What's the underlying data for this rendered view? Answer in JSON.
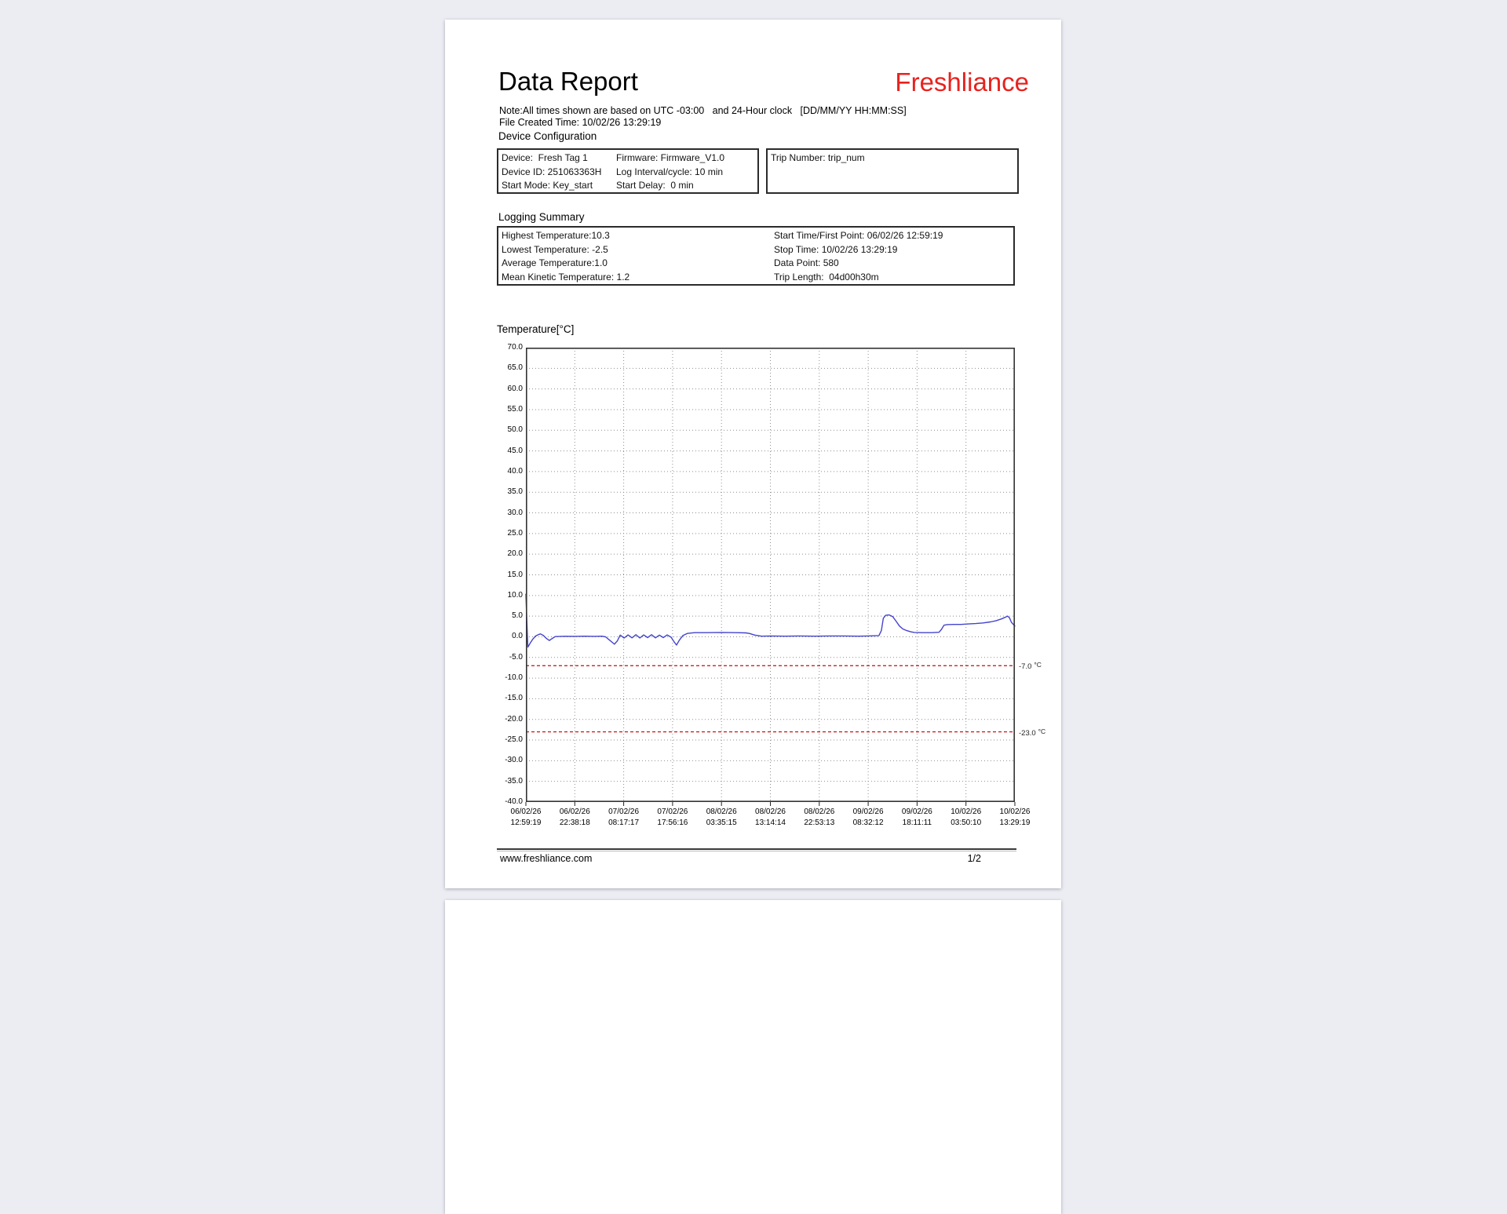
{
  "page": {
    "title": "Data Report",
    "brand": "Freshliance",
    "brand_color": "#e8221e",
    "note_line1": "Note:All times shown are based on UTC -03:00   and 24-Hour clock   [DD/MM/YY HH:MM:SS]",
    "note_line2": "File Created Time: 10/02/26 13:29:19",
    "footer_url": "www.freshliance.com",
    "footer_page": "1/2"
  },
  "device_configuration": {
    "heading": "Device Configuration",
    "rows": [
      {
        "left": "Device:  Fresh Tag 1",
        "right": "Firmware: Firmware_V1.0"
      },
      {
        "left": "Device ID: 251063363H",
        "right": "Log Interval/cycle: 10 min"
      },
      {
        "left": "Start Mode: Key_start",
        "right": "Start Delay:  0 min"
      }
    ],
    "trip_number": "Trip Number: trip_num"
  },
  "logging_summary": {
    "heading": "Logging Summary",
    "rows": [
      {
        "left": "Highest Temperature:10.3",
        "right": "Start Time/First Point: 06/02/26 12:59:19"
      },
      {
        "left": "Lowest Temperature: -2.5",
        "right": "Stop Time: 10/02/26 13:29:19"
      },
      {
        "left": "Average Temperature:1.0",
        "right": "Data Point: 580"
      },
      {
        "left": "Mean Kinetic Temperature: 1.2",
        "right": "Trip Length:  04d00h30m"
      }
    ]
  },
  "chart_data": {
    "type": "line",
    "title": "Temperature[°C]",
    "ylabel": "Temperature [°C]",
    "ylim": [
      -40,
      70
    ],
    "ytick_labels": [
      "70.0",
      "65.0",
      "60.0",
      "55.0",
      "50.0",
      "45.0",
      "40.0",
      "35.0",
      "30.0",
      "25.0",
      "20.0",
      "15.0",
      "10.0",
      "5.0",
      "0.0",
      "-5.0",
      "-10.0",
      "-15.0",
      "-20.0",
      "-25.0",
      "-30.0",
      "-35.0",
      "-40.0"
    ],
    "xtick_labels": [
      [
        "06/02/26",
        "12:59:19"
      ],
      [
        "06/02/26",
        "22:38:18"
      ],
      [
        "07/02/26",
        "08:17:17"
      ],
      [
        "07/02/26",
        "17:56:16"
      ],
      [
        "08/02/26",
        "03:35:15"
      ],
      [
        "08/02/26",
        "13:14:14"
      ],
      [
        "08/02/26",
        "22:53:13"
      ],
      [
        "09/02/26",
        "08:32:12"
      ],
      [
        "09/02/26",
        "18:11:11"
      ],
      [
        "10/02/26",
        "03:50:10"
      ],
      [
        "10/02/26",
        "13:29:19"
      ]
    ],
    "grid": true,
    "legend": "none",
    "line_color": "#4343cf",
    "threshold_color": "#cc2222",
    "thresholds": [
      {
        "value": -7.0,
        "label": "-7.0",
        "unit": "°C"
      },
      {
        "value": -23.0,
        "label": "-23.0",
        "unit": "°C"
      }
    ],
    "series": [
      {
        "name": "Temperature",
        "points": [
          [
            0.0,
            10.3
          ],
          [
            0.002,
            4.0
          ],
          [
            0.004,
            -2.5
          ],
          [
            0.009,
            -1.5
          ],
          [
            0.014,
            -0.6
          ],
          [
            0.02,
            0.2
          ],
          [
            0.026,
            0.55
          ],
          [
            0.03,
            0.7
          ],
          [
            0.036,
            0.3
          ],
          [
            0.042,
            -0.4
          ],
          [
            0.048,
            -0.9
          ],
          [
            0.054,
            -0.4
          ],
          [
            0.06,
            0.05
          ],
          [
            0.08,
            0.12
          ],
          [
            0.1,
            0.1
          ],
          [
            0.12,
            0.15
          ],
          [
            0.14,
            0.1
          ],
          [
            0.155,
            0.15
          ],
          [
            0.163,
            0.0
          ],
          [
            0.172,
            -0.9
          ],
          [
            0.181,
            -1.8
          ],
          [
            0.187,
            -1.0
          ],
          [
            0.193,
            0.4
          ],
          [
            0.201,
            -0.3
          ],
          [
            0.209,
            0.45
          ],
          [
            0.217,
            -0.25
          ],
          [
            0.225,
            0.5
          ],
          [
            0.233,
            -0.3
          ],
          [
            0.241,
            0.45
          ],
          [
            0.249,
            -0.2
          ],
          [
            0.257,
            0.5
          ],
          [
            0.265,
            -0.25
          ],
          [
            0.273,
            0.4
          ],
          [
            0.281,
            -0.2
          ],
          [
            0.289,
            0.45
          ],
          [
            0.297,
            -0.1
          ],
          [
            0.303,
            -1.2
          ],
          [
            0.308,
            -2.0
          ],
          [
            0.314,
            -0.8
          ],
          [
            0.321,
            0.3
          ],
          [
            0.33,
            0.8
          ],
          [
            0.345,
            1.0
          ],
          [
            0.37,
            1.0
          ],
          [
            0.4,
            1.05
          ],
          [
            0.43,
            1.0
          ],
          [
            0.45,
            0.95
          ],
          [
            0.457,
            0.8
          ],
          [
            0.468,
            0.4
          ],
          [
            0.482,
            0.15
          ],
          [
            0.5,
            0.2
          ],
          [
            0.53,
            0.15
          ],
          [
            0.56,
            0.2
          ],
          [
            0.59,
            0.15
          ],
          [
            0.62,
            0.2
          ],
          [
            0.65,
            0.2
          ],
          [
            0.68,
            0.15
          ],
          [
            0.7,
            0.2
          ],
          [
            0.715,
            0.25
          ],
          [
            0.722,
            0.3
          ],
          [
            0.727,
            1.5
          ],
          [
            0.731,
            4.5
          ],
          [
            0.736,
            5.2
          ],
          [
            0.743,
            5.3
          ],
          [
            0.75,
            4.9
          ],
          [
            0.757,
            3.8
          ],
          [
            0.764,
            2.6
          ],
          [
            0.771,
            1.9
          ],
          [
            0.779,
            1.5
          ],
          [
            0.787,
            1.2
          ],
          [
            0.794,
            1.05
          ],
          [
            0.81,
            1.0
          ],
          [
            0.83,
            1.0
          ],
          [
            0.845,
            1.1
          ],
          [
            0.85,
            1.8
          ],
          [
            0.855,
            2.8
          ],
          [
            0.862,
            2.95
          ],
          [
            0.875,
            3.0
          ],
          [
            0.89,
            3.0
          ],
          [
            0.905,
            3.1
          ],
          [
            0.92,
            3.2
          ],
          [
            0.935,
            3.35
          ],
          [
            0.95,
            3.6
          ],
          [
            0.962,
            3.9
          ],
          [
            0.972,
            4.3
          ],
          [
            0.98,
            4.7
          ],
          [
            0.985,
            5.0
          ],
          [
            0.989,
            4.6
          ],
          [
            0.993,
            3.5
          ],
          [
            1.0,
            2.6
          ]
        ]
      }
    ]
  }
}
